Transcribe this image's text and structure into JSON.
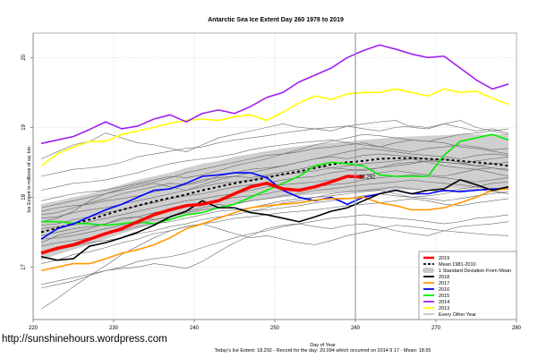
{
  "watermark": "http://sunshinehours.wordpress.com",
  "footer": {
    "xlabel": "Day of Year",
    "summary": "Today's Ice Extent: 18.292  - Record for the day: 20.094 which occurred on 2014 9 17  - Mean: 18.55"
  },
  "chart_data": {
    "type": "line",
    "title": "Antarctic Sea Ice Extent Day 260 1978 to 2019",
    "xlabel": "Day of Year",
    "ylabel": "Ice Extent in millions of sq. km.",
    "xlim": [
      220,
      280
    ],
    "ylim": [
      16.25,
      20.35
    ],
    "xticks": [
      220,
      230,
      240,
      250,
      260,
      270,
      280
    ],
    "yticks": [
      17,
      18,
      19,
      20
    ],
    "grid": true,
    "vline_day": 260,
    "end_label": {
      "day": 260,
      "value": 18.292,
      "text": "18.292",
      "color": "#ff0000"
    },
    "legend_position": "bottom-right",
    "legend": [
      {
        "label": "2019",
        "color": "#ff0000",
        "style": "thick"
      },
      {
        "label": "Mean 1981-2010",
        "color": "#000000",
        "style": "dashed"
      },
      {
        "label": "1 Standard Deviation From Mean",
        "color": "#c8c8c8",
        "style": "band"
      },
      {
        "label": "2018",
        "color": "#000000",
        "style": "solid"
      },
      {
        "label": "2017",
        "color": "#ff9900",
        "style": "solid"
      },
      {
        "label": "2016",
        "color": "#0000ff",
        "style": "solid"
      },
      {
        "label": "2015",
        "color": "#00ee00",
        "style": "solid"
      },
      {
        "label": "2014",
        "color": "#a020f0",
        "style": "solid"
      },
      {
        "label": "2013",
        "color": "#ffff00",
        "style": "solid"
      },
      {
        "label": "Every Other Year",
        "color": "#808080",
        "style": "thin"
      }
    ],
    "x": [
      221,
      223,
      225,
      227,
      229,
      231,
      233,
      235,
      237,
      239,
      241,
      243,
      245,
      247,
      249,
      251,
      253,
      255,
      257,
      259,
      261,
      263,
      265,
      267,
      269,
      271,
      273,
      275,
      277,
      279
    ],
    "band": {
      "upper": [
        17.9,
        17.95,
        18.0,
        18.05,
        18.12,
        18.18,
        18.25,
        18.3,
        18.35,
        18.42,
        18.48,
        18.52,
        18.58,
        18.62,
        18.66,
        18.7,
        18.73,
        18.76,
        18.78,
        18.8,
        18.82,
        18.84,
        18.86,
        18.87,
        18.88,
        18.89,
        18.9,
        18.9,
        18.9,
        18.9
      ],
      "lower": [
        17.1,
        17.18,
        17.25,
        17.32,
        17.4,
        17.48,
        17.55,
        17.62,
        17.68,
        17.74,
        17.8,
        17.85,
        17.9,
        17.94,
        17.97,
        18.0,
        18.02,
        18.04,
        18.06,
        18.07,
        18.08,
        18.09,
        18.1,
        18.11,
        18.12,
        18.12,
        18.13,
        18.13,
        18.13,
        18.13
      ]
    },
    "series": [
      {
        "name": "Mean 1981-2010",
        "color": "#000000",
        "style": "dashed",
        "width": 2,
        "values": [
          17.5,
          17.56,
          17.62,
          17.68,
          17.75,
          17.82,
          17.88,
          17.94,
          17.99,
          18.04,
          18.1,
          18.15,
          18.2,
          18.24,
          18.28,
          18.33,
          18.37,
          18.42,
          18.47,
          18.5,
          18.52,
          18.55,
          18.56,
          18.56,
          18.55,
          18.54,
          18.52,
          18.5,
          18.48,
          18.45
        ]
      },
      {
        "name": "2013",
        "color": "#ffff00",
        "style": "solid",
        "width": 1.6,
        "values": [
          18.45,
          18.62,
          18.72,
          18.8,
          18.8,
          18.9,
          18.95,
          19.0,
          19.06,
          19.1,
          19.12,
          19.1,
          19.15,
          19.18,
          19.1,
          19.22,
          19.35,
          19.45,
          19.4,
          19.48,
          19.5,
          19.5,
          19.55,
          19.5,
          19.45,
          19.55,
          19.5,
          19.52,
          19.42,
          19.33
        ]
      },
      {
        "name": "2014",
        "color": "#a020f0",
        "style": "solid",
        "width": 1.6,
        "values": [
          18.77,
          18.82,
          18.87,
          18.97,
          19.08,
          18.98,
          19.02,
          19.12,
          19.18,
          19.08,
          19.2,
          19.25,
          19.2,
          19.3,
          19.43,
          19.5,
          19.65,
          19.75,
          19.85,
          20.0,
          20.1,
          20.18,
          20.12,
          20.05,
          20.0,
          20.02,
          19.85,
          19.68,
          19.55,
          19.62
        ]
      },
      {
        "name": "2015",
        "color": "#00ee00",
        "style": "solid",
        "width": 1.6,
        "values": [
          17.65,
          17.65,
          17.63,
          17.62,
          17.6,
          17.62,
          17.65,
          17.62,
          17.68,
          17.75,
          17.78,
          17.85,
          17.9,
          18.0,
          18.1,
          18.2,
          18.3,
          18.45,
          18.5,
          18.48,
          18.45,
          18.32,
          18.3,
          18.3,
          18.3,
          18.6,
          18.8,
          18.85,
          18.9,
          18.82
        ]
      },
      {
        "name": "2016",
        "color": "#0000ff",
        "style": "solid",
        "width": 1.6,
        "values": [
          17.4,
          17.55,
          17.62,
          17.72,
          17.82,
          17.9,
          18.0,
          18.1,
          18.12,
          18.2,
          18.3,
          18.32,
          18.35,
          18.35,
          18.28,
          18.1,
          18.0,
          17.95,
          18.0,
          17.9,
          18.0,
          18.05,
          18.1,
          18.05,
          18.05,
          18.1,
          18.08,
          18.1,
          18.12,
          18.12
        ]
      },
      {
        "name": "2017",
        "color": "#ff9900",
        "style": "solid",
        "width": 1.6,
        "values": [
          16.95,
          17.0,
          17.05,
          17.05,
          17.12,
          17.2,
          17.25,
          17.32,
          17.42,
          17.55,
          17.62,
          17.7,
          17.78,
          17.85,
          17.88,
          17.9,
          17.92,
          17.96,
          17.98,
          17.98,
          18.0,
          17.92,
          17.88,
          17.82,
          17.82,
          17.85,
          17.92,
          18.0,
          18.1,
          18.12
        ]
      },
      {
        "name": "2018",
        "color": "#000000",
        "style": "solid",
        "width": 1.6,
        "values": [
          17.15,
          17.1,
          17.12,
          17.3,
          17.35,
          17.42,
          17.5,
          17.6,
          17.72,
          17.8,
          17.95,
          17.85,
          17.85,
          17.78,
          17.75,
          17.7,
          17.65,
          17.72,
          17.8,
          17.85,
          17.95,
          18.05,
          18.1,
          18.05,
          18.1,
          18.12,
          18.25,
          18.18,
          18.1,
          18.15
        ]
      },
      {
        "name": "2019",
        "color": "#ff0000",
        "style": "thick",
        "width": 3.5,
        "values": [
          17.2,
          17.27,
          17.32,
          17.4,
          17.48,
          17.55,
          17.65,
          17.75,
          17.82,
          17.88,
          17.9,
          17.95,
          18.05,
          18.15,
          18.2,
          18.12,
          18.1,
          18.15,
          18.22,
          18.3,
          18.29,
          null,
          null,
          null,
          null,
          null,
          null,
          null,
          null,
          null
        ]
      }
    ],
    "other_years": [
      [
        18.55,
        18.65,
        18.75,
        18.8,
        18.92,
        18.85,
        18.78,
        18.75,
        18.7,
        18.65,
        18.75,
        18.85,
        18.9,
        18.95,
        19.0,
        19.05,
        19.0,
        18.98,
        18.95,
        19.02,
        19.05,
        19.08,
        19.1,
        19.0,
        18.98,
        19.05,
        19.0,
        18.95,
        18.98,
        18.92
      ],
      [
        18.3,
        18.35,
        18.4,
        18.42,
        18.45,
        18.5,
        18.58,
        18.62,
        18.66,
        18.7,
        18.72,
        18.78,
        18.82,
        18.85,
        18.88,
        18.92,
        18.95,
        18.98,
        19.0,
        19.02,
        18.98,
        18.95,
        19.0,
        19.02,
        19.0,
        19.05,
        19.1,
        19.0,
        18.95,
        18.9
      ],
      [
        18.1,
        18.15,
        18.2,
        18.22,
        18.25,
        18.3,
        18.35,
        18.42,
        18.48,
        18.52,
        18.55,
        18.58,
        18.62,
        18.68,
        18.72,
        18.75,
        18.78,
        18.8,
        18.82,
        18.78,
        18.75,
        18.72,
        18.78,
        18.82,
        18.8,
        18.78,
        18.72,
        18.7,
        18.66,
        18.62
      ],
      [
        17.85,
        17.9,
        17.95,
        18.0,
        18.05,
        18.12,
        18.18,
        18.22,
        18.28,
        18.35,
        18.4,
        18.45,
        18.5,
        18.55,
        18.6,
        18.62,
        18.65,
        18.7,
        18.72,
        18.75,
        18.78,
        18.72,
        18.68,
        18.65,
        18.7,
        18.72,
        18.75,
        18.72,
        18.68,
        18.7
      ],
      [
        17.75,
        17.78,
        17.85,
        17.92,
        17.98,
        18.05,
        18.1,
        18.15,
        18.2,
        18.18,
        18.22,
        18.3,
        18.35,
        18.4,
        18.42,
        18.45,
        18.5,
        18.55,
        18.58,
        18.55,
        18.6,
        18.62,
        18.6,
        18.58,
        18.55,
        18.5,
        18.48,
        18.45,
        18.42,
        18.4
      ],
      [
        17.7,
        17.72,
        17.78,
        17.82,
        17.85,
        17.9,
        17.95,
        18.0,
        18.05,
        18.1,
        18.15,
        18.2,
        18.22,
        18.25,
        18.3,
        18.32,
        18.35,
        18.38,
        18.42,
        18.45,
        18.48,
        18.5,
        18.52,
        18.55,
        18.5,
        18.45,
        18.42,
        18.4,
        18.35,
        18.3
      ],
      [
        17.6,
        17.62,
        17.68,
        17.72,
        17.78,
        17.82,
        17.88,
        17.92,
        17.98,
        18.02,
        18.05,
        18.1,
        18.15,
        18.18,
        18.2,
        18.25,
        18.28,
        18.3,
        18.35,
        18.38,
        18.4,
        18.42,
        18.45,
        18.48,
        18.52,
        18.55,
        18.5,
        18.45,
        18.48,
        18.5
      ],
      [
        17.55,
        17.58,
        17.6,
        17.65,
        17.7,
        17.75,
        17.8,
        17.85,
        17.9,
        17.95,
        17.98,
        18.02,
        18.05,
        18.1,
        18.15,
        18.18,
        18.2,
        18.22,
        18.25,
        18.3,
        18.32,
        18.35,
        18.38,
        18.35,
        18.32,
        18.3,
        18.35,
        18.4,
        18.42,
        18.38
      ],
      [
        17.45,
        17.5,
        17.55,
        17.58,
        17.62,
        17.68,
        17.72,
        17.78,
        17.82,
        17.88,
        17.92,
        17.95,
        18.0,
        18.02,
        18.05,
        18.1,
        18.12,
        18.15,
        18.18,
        18.2,
        18.25,
        18.28,
        18.3,
        18.32,
        18.3,
        18.28,
        18.25,
        18.22,
        18.25,
        18.28
      ],
      [
        17.4,
        17.42,
        17.45,
        17.5,
        17.55,
        17.6,
        17.62,
        17.68,
        17.72,
        17.78,
        17.82,
        17.85,
        17.9,
        17.95,
        17.98,
        18.02,
        18.05,
        18.1,
        18.12,
        18.15,
        18.18,
        18.2,
        18.22,
        18.25,
        18.22,
        18.2,
        18.18,
        18.15,
        18.2,
        18.22
      ],
      [
        17.3,
        17.35,
        17.38,
        17.42,
        17.48,
        17.52,
        17.58,
        17.62,
        17.65,
        17.7,
        17.75,
        17.8,
        17.82,
        17.85,
        17.9,
        17.95,
        17.98,
        18.0,
        18.05,
        18.08,
        18.1,
        18.12,
        18.15,
        18.12,
        18.1,
        18.08,
        18.12,
        18.15,
        18.1,
        18.05
      ],
      [
        17.2,
        17.25,
        17.3,
        17.35,
        17.38,
        17.42,
        17.48,
        17.52,
        17.58,
        17.62,
        17.68,
        17.72,
        17.75,
        17.8,
        17.82,
        17.85,
        17.88,
        17.92,
        17.95,
        17.98,
        18.02,
        18.05,
        18.02,
        18.0,
        17.98,
        17.95,
        17.98,
        18.02,
        18.05,
        18.08
      ],
      [
        17.05,
        17.1,
        17.18,
        17.22,
        17.28,
        17.35,
        17.4,
        17.48,
        17.52,
        17.58,
        17.62,
        17.65,
        17.7,
        17.72,
        17.75,
        17.78,
        17.8,
        17.82,
        17.85,
        17.88,
        17.9,
        17.92,
        17.95,
        17.98,
        17.95,
        17.9,
        17.88,
        17.92,
        17.95,
        17.98
      ],
      [
        16.75,
        16.8,
        16.85,
        16.9,
        16.95,
        17.0,
        17.08,
        17.12,
        17.15,
        17.2,
        17.28,
        17.35,
        17.42,
        17.48,
        17.52,
        17.58,
        17.62,
        17.66,
        17.7,
        17.72,
        17.75,
        17.72,
        17.7,
        17.68,
        17.65,
        17.62,
        17.65,
        17.7,
        17.72,
        17.75
      ],
      [
        16.7,
        16.75,
        16.8,
        16.88,
        16.95,
        16.98,
        17.0,
        17.05,
        17.02,
        16.98,
        17.08,
        17.22,
        17.35,
        17.45,
        17.55,
        17.6,
        17.62,
        17.58,
        17.55,
        17.6,
        17.62,
        17.58,
        17.52,
        17.48,
        17.45,
        17.52,
        17.58,
        17.6,
        17.62,
        17.65
      ],
      [
        16.4,
        16.55,
        16.72,
        16.88,
        17.02,
        17.18,
        17.3,
        17.42,
        17.52,
        17.58,
        17.62,
        17.55,
        17.48,
        17.42,
        17.45,
        17.4,
        17.35,
        17.32,
        17.38,
        17.45,
        17.5,
        17.55,
        17.6,
        17.58,
        17.55,
        17.52,
        17.5,
        17.48,
        17.46,
        17.45
      ],
      [
        17.65,
        17.7,
        17.8,
        17.95,
        18.05,
        18.1,
        18.15,
        18.2,
        18.15,
        18.1,
        18.18,
        18.25,
        18.3,
        18.35,
        18.4,
        18.45,
        18.5,
        18.55,
        18.6,
        18.65,
        18.7,
        18.68,
        18.65,
        18.62,
        18.6,
        18.58,
        18.55,
        18.6,
        18.62,
        18.6
      ],
      [
        17.95,
        18.0,
        18.05,
        18.08,
        18.1,
        18.15,
        18.2,
        18.25,
        18.3,
        18.28,
        18.32,
        18.38,
        18.45,
        18.5,
        18.55,
        18.62,
        18.68,
        18.75,
        18.8,
        18.85,
        18.9,
        18.88,
        18.85,
        18.82,
        18.8,
        18.85,
        18.9,
        18.92,
        18.95,
        18.98
      ],
      [
        17.35,
        17.45,
        17.5,
        17.55,
        17.62,
        17.7,
        17.72,
        17.68,
        17.72,
        17.8,
        17.85,
        17.9,
        17.85,
        17.8,
        17.85,
        17.92,
        17.95,
        18.0,
        18.02,
        18.05,
        18.08,
        18.1,
        18.05,
        18.0,
        18.02,
        18.05,
        18.1,
        18.12,
        18.08,
        18.05
      ],
      [
        17.8,
        17.85,
        17.88,
        17.9,
        17.95,
        17.98,
        18.02,
        18.08,
        18.12,
        18.18,
        18.25,
        18.28,
        18.3,
        18.28,
        18.32,
        18.36,
        18.4,
        18.45,
        18.42,
        18.4,
        18.38,
        18.42,
        18.48,
        18.5,
        18.52,
        18.5,
        18.48,
        18.52,
        18.55,
        18.58
      ]
    ]
  }
}
